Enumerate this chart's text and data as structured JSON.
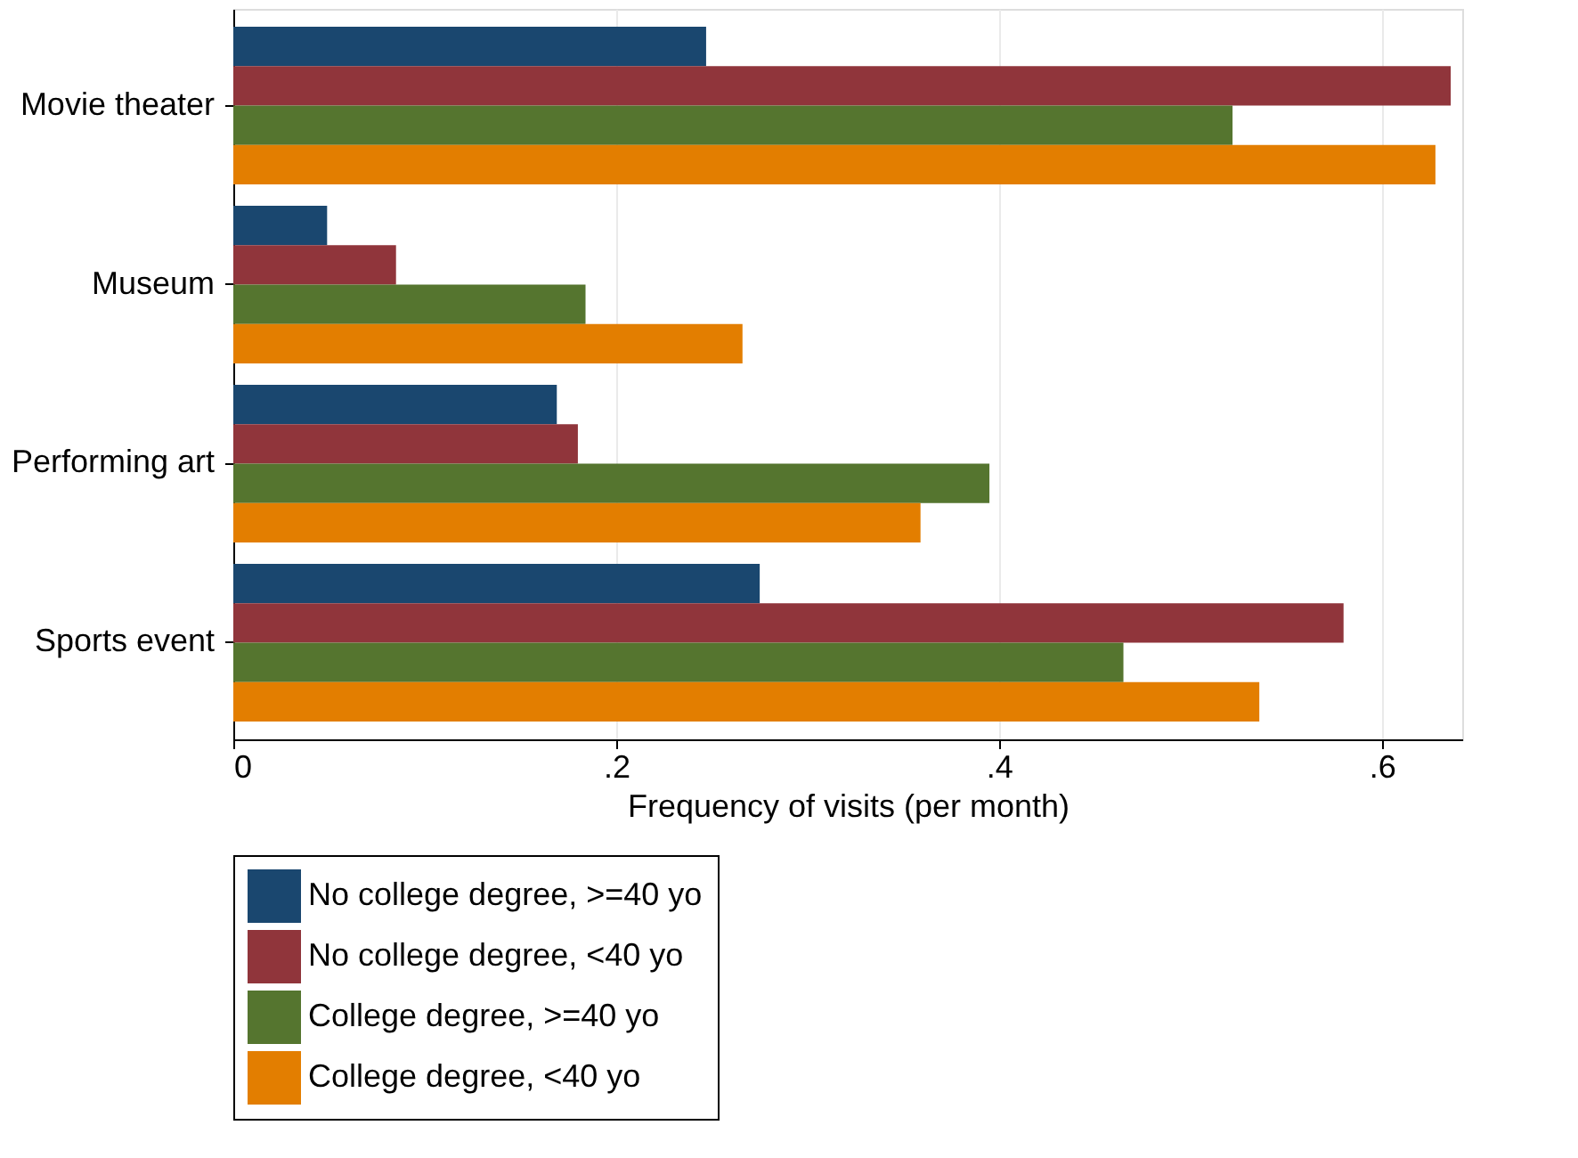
{
  "chart_data": {
    "type": "bar",
    "orientation": "horizontal",
    "xlabel": "Frequency of visits (per month)",
    "categories": [
      "Movie theater",
      "Museum",
      "Performing art",
      "Sports event"
    ],
    "series": [
      {
        "name": "No college degree, >=40 yo",
        "color": "#1a476f",
        "values": [
          0.247,
          0.049,
          0.169,
          0.275
        ]
      },
      {
        "name": "No college degree, <40 yo",
        "color": "#90353b",
        "values": [
          0.636,
          0.085,
          0.18,
          0.58
        ]
      },
      {
        "name": "College degree, >=40 yo",
        "color": "#55752f",
        "values": [
          0.522,
          0.184,
          0.395,
          0.465
        ]
      },
      {
        "name": "College degree, <40 yo",
        "color": "#e37e00",
        "values": [
          0.628,
          0.266,
          0.359,
          0.536
        ]
      }
    ],
    "xlim": [
      0,
      0.642
    ],
    "xticks": [
      0,
      {
        "value": 0.2,
        "label": ".2"
      },
      {
        "value": 0.4,
        "label": ".4"
      },
      {
        "value": 0.6,
        "label": ".6"
      }
    ],
    "grid": "x",
    "legend": "bottom"
  }
}
